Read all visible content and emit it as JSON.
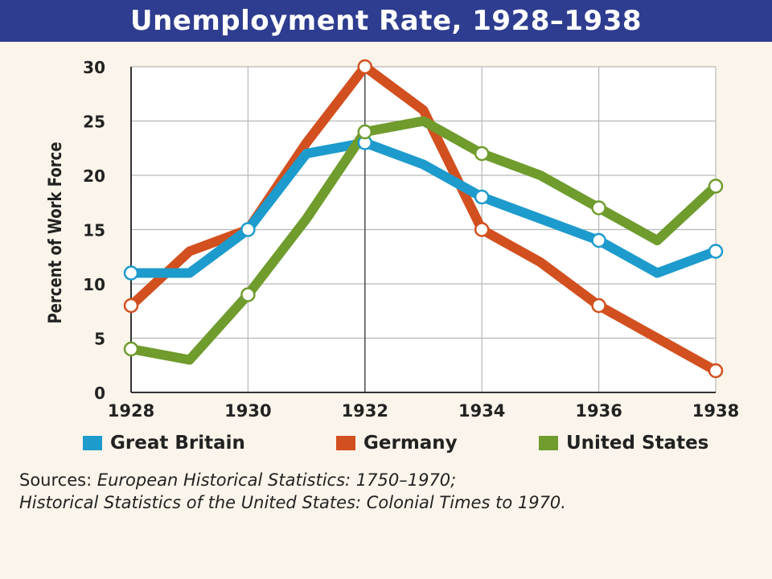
{
  "title": "Unemployment Rate, 1928–1938",
  "colors": {
    "title_bar": "#2e3d8f",
    "background": "#fbf4ea",
    "great_britain": "#1d9bcc",
    "germany": "#d2501f",
    "united_states": "#6f9c2d",
    "grid": "#b7b7b7"
  },
  "legend": [
    {
      "label": "Great Britain",
      "color": "#1d9bcc"
    },
    {
      "label": "Germany",
      "color": "#d2501f"
    },
    {
      "label": "United States",
      "color": "#6f9c2d"
    }
  ],
  "sources": {
    "prefix": "Sources: ",
    "line1_title": "European Historical Statistics: 1750–1970;",
    "line2_title": "Historical Statistics of the United States: Colonial Times to 1970."
  },
  "chart_data": {
    "type": "line",
    "title": "Unemployment Rate, 1928–1938",
    "xlabel": "",
    "ylabel": "Percent of Work Force",
    "xlim": [
      1928,
      1938
    ],
    "ylim": [
      0,
      30
    ],
    "x_ticks": [
      "1928",
      "1930",
      "1932",
      "1934",
      "1936",
      "1938"
    ],
    "y_ticks": [
      "0",
      "5",
      "10",
      "15",
      "20",
      "25",
      "30"
    ],
    "grid": true,
    "legend_position": "bottom",
    "x": [
      1928,
      1929,
      1930,
      1931,
      1932,
      1933,
      1934,
      1935,
      1936,
      1937,
      1938
    ],
    "series": [
      {
        "name": "Great Britain",
        "color": "#1d9bcc",
        "values": [
          11,
          11,
          15,
          22,
          23,
          21,
          18,
          16,
          14,
          11,
          13
        ],
        "markers_at": [
          1928,
          1930,
          1932,
          1934,
          1936,
          1938
        ]
      },
      {
        "name": "Germany",
        "color": "#d2501f",
        "values": [
          8,
          13,
          15,
          23,
          30,
          26,
          15,
          12,
          8,
          5,
          2
        ],
        "markers_at": [
          1928,
          1932,
          1934,
          1936,
          1938
        ]
      },
      {
        "name": "United States",
        "color": "#6f9c2d",
        "values": [
          4,
          3,
          9,
          16,
          24,
          25,
          22,
          20,
          17,
          14,
          19
        ],
        "markers_at": [
          1928,
          1930,
          1932,
          1934,
          1936,
          1938
        ]
      }
    ]
  }
}
